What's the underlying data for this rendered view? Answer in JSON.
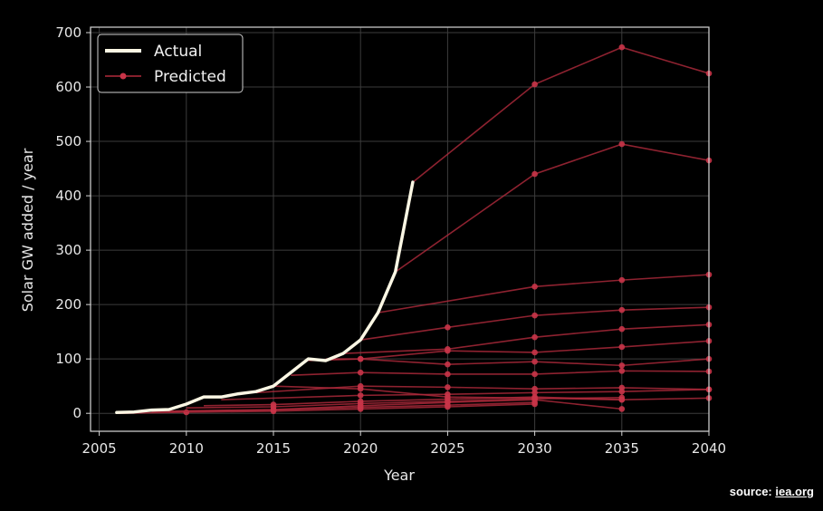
{
  "chart_data": {
    "type": "line",
    "xlabel": "Year",
    "ylabel": "Solar GW added / year",
    "xlim": [
      2004.5,
      2040
    ],
    "ylim": [
      -33,
      710
    ],
    "x_ticks": [
      2005,
      2010,
      2015,
      2020,
      2025,
      2030,
      2035,
      2040
    ],
    "y_ticks": [
      0,
      100,
      200,
      300,
      400,
      500,
      600,
      700
    ],
    "grid": true,
    "legend": {
      "placement": "top-left",
      "entries": [
        "Actual",
        "Predicted"
      ]
    },
    "colors": {
      "actual": "#fbf7e4",
      "predicted": "#b22a3c",
      "background": "#000000",
      "grid": "#3c3c3c"
    },
    "series": [
      {
        "name": "Actual",
        "x": [
          2006,
          2007,
          2008,
          2009,
          2010,
          2011,
          2012,
          2013,
          2014,
          2015,
          2016,
          2017,
          2018,
          2019,
          2020,
          2021,
          2022,
          2023
        ],
        "y": [
          1.5,
          2.5,
          6,
          7,
          17,
          30,
          30,
          36,
          40,
          50,
          75,
          100,
          97,
          110,
          135,
          185,
          260,
          425
        ]
      },
      {
        "name": "Predicted",
        "projections": [
          {
            "x": [
              2006,
              2010,
              2015,
              2020,
              2025,
              2030
            ],
            "y": [
              0,
              2,
              4,
              8,
              12,
              17
            ]
          },
          {
            "x": [
              2008,
              2015,
              2020,
              2025,
              2030
            ],
            "y": [
              3,
              6,
              11,
              15,
              20
            ]
          },
          {
            "x": [
              2009,
              2015,
              2020,
              2025,
              2030,
              2035
            ],
            "y": [
              4,
              7,
              14,
              20,
              25,
              8
            ]
          },
          {
            "x": [
              2010,
              2015,
              2020,
              2025,
              2030,
              2035
            ],
            "y": [
              10,
              12,
              18,
              22,
              27,
              29
            ]
          },
          {
            "x": [
              2011,
              2015,
              2020,
              2025,
              2030,
              2035
            ],
            "y": [
              14,
              16,
              22,
              26,
              30,
              25
            ]
          },
          {
            "x": [
              2012,
              2020,
              2025,
              2030,
              2035,
              2040
            ],
            "y": [
              25,
              33,
              35,
              38,
              40,
              44
            ]
          },
          {
            "x": [
              2014,
              2020,
              2025,
              2030,
              2035,
              2040
            ],
            "y": [
              38,
              50,
              48,
              45,
              47,
              44
            ]
          },
          {
            "x": [
              2015,
              2020,
              2025,
              2030,
              2035,
              2040
            ],
            "y": [
              50,
              45,
              30,
              28,
              25,
              28
            ]
          },
          {
            "x": [
              2016,
              2020,
              2025,
              2030,
              2035,
              2040
            ],
            "y": [
              70,
              75,
              72,
              72,
              78,
              77
            ]
          },
          {
            "x": [
              2017,
              2020,
              2025,
              2030,
              2035,
              2040
            ],
            "y": [
              97,
              100,
              90,
              95,
              88,
              100
            ]
          },
          {
            "x": [
              2018,
              2020,
              2025,
              2030,
              2035,
              2040
            ],
            "y": [
              100,
              100,
              115,
              112,
              122,
              133
            ]
          },
          {
            "x": [
              2019,
              2025,
              2030,
              2035,
              2040
            ],
            "y": [
              110,
              118,
              140,
              155,
              163
            ]
          },
          {
            "x": [
              2020,
              2025,
              2030,
              2035,
              2040
            ],
            "y": [
              135,
              158,
              180,
              190,
              195
            ]
          },
          {
            "x": [
              2021,
              2030,
              2035,
              2040
            ],
            "y": [
              185,
              233,
              245,
              255
            ]
          },
          {
            "x": [
              2022,
              2030,
              2035,
              2040
            ],
            "y": [
              260,
              440,
              495,
              465
            ]
          },
          {
            "x": [
              2023,
              2030,
              2035,
              2040
            ],
            "y": [
              425,
              605,
              673,
              625
            ]
          }
        ]
      }
    ]
  },
  "source": {
    "prefix": "source: ",
    "site": "iea.org"
  }
}
